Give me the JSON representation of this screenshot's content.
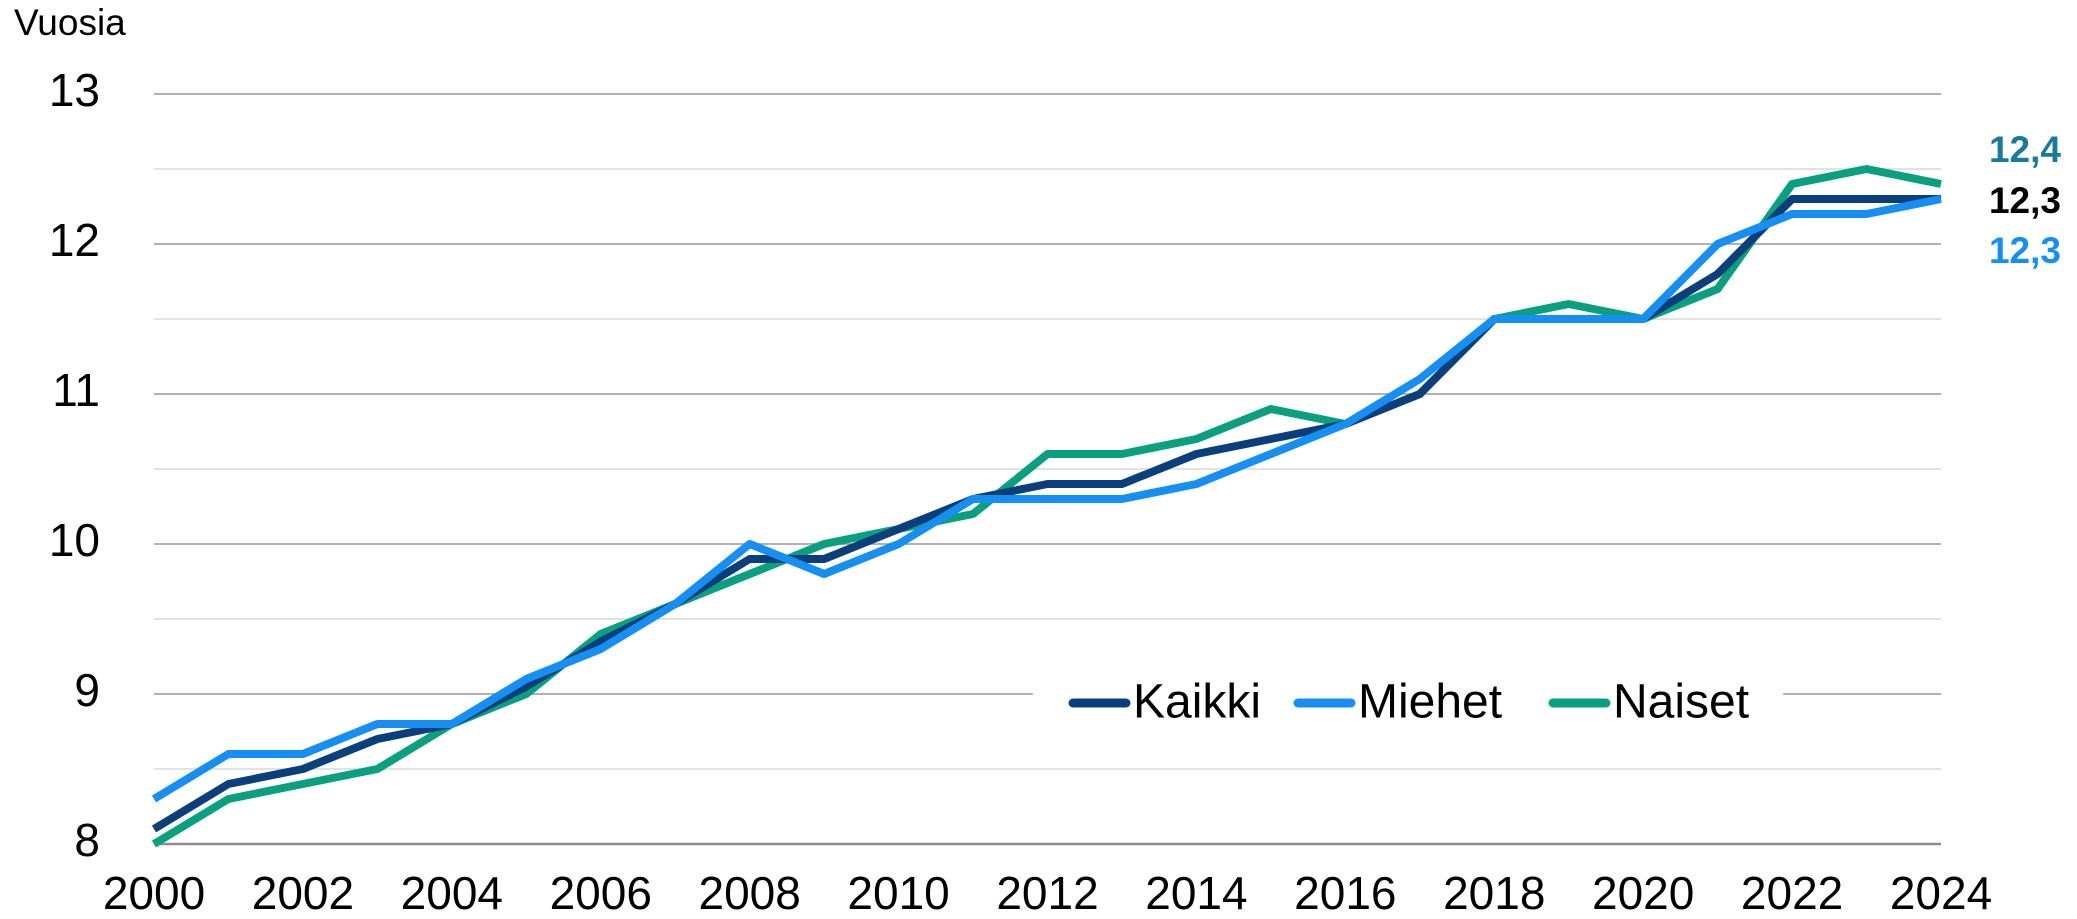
{
  "chart_data": {
    "type": "line",
    "y_axis_label": "Vuosia",
    "x": [
      2000,
      2001,
      2002,
      2003,
      2004,
      2005,
      2006,
      2007,
      2008,
      2009,
      2010,
      2011,
      2012,
      2013,
      2014,
      2015,
      2016,
      2017,
      2018,
      2019,
      2020,
      2021,
      2022,
      2023,
      2024
    ],
    "xlim": [
      2000,
      2024
    ],
    "xticks": [
      2000,
      2002,
      2004,
      2006,
      2008,
      2010,
      2012,
      2014,
      2016,
      2018,
      2020,
      2022,
      2024
    ],
    "ylim": [
      8,
      13
    ],
    "yticks": [
      8,
      9,
      10,
      11,
      12,
      13
    ],
    "minor_grid": [
      8.5,
      9.5,
      10.5,
      11.5,
      12.5
    ],
    "grid": true,
    "legend": "bottom-center",
    "series": [
      {
        "name": "Kaikki",
        "color": "#0b3f7c",
        "label_color": "#000000",
        "values": [
          8.1,
          8.4,
          8.5,
          8.7,
          8.8,
          9.05,
          9.35,
          9.6,
          9.9,
          9.9,
          10.1,
          10.3,
          10.4,
          10.4,
          10.6,
          10.7,
          10.8,
          11.0,
          11.5,
          11.5,
          11.5,
          11.8,
          12.3,
          12.3,
          12.3
        ],
        "value_labels": [
          null,
          null,
          null,
          null,
          null,
          null,
          null,
          null,
          null,
          null,
          null,
          null,
          null,
          null,
          null,
          null,
          null,
          null,
          null,
          null,
          null,
          null,
          null,
          null,
          "12,3"
        ]
      },
      {
        "name": "Miehet",
        "color": "#168ef2",
        "label_color": "#168ef2",
        "values": [
          8.3,
          8.6,
          8.6,
          8.8,
          8.8,
          9.1,
          9.3,
          9.6,
          10.0,
          9.8,
          10.0,
          10.3,
          10.3,
          10.3,
          10.4,
          10.6,
          10.8,
          11.1,
          11.5,
          11.5,
          11.5,
          12.0,
          12.2,
          12.2,
          12.3
        ],
        "value_labels": [
          null,
          null,
          null,
          null,
          null,
          null,
          null,
          null,
          null,
          null,
          null,
          null,
          null,
          null,
          null,
          null,
          null,
          null,
          null,
          null,
          null,
          null,
          null,
          null,
          "12,3"
        ]
      },
      {
        "name": "Naiset",
        "color": "#0aa07f",
        "label_color": "#1b7a98",
        "values": [
          8.0,
          8.3,
          8.4,
          8.5,
          8.8,
          9.0,
          9.4,
          9.6,
          9.8,
          10.0,
          10.1,
          10.2,
          10.6,
          10.6,
          10.7,
          10.9,
          10.8,
          11.0,
          11.5,
          11.6,
          11.5,
          11.7,
          12.4,
          12.5,
          12.4
        ],
        "value_labels": [
          null,
          null,
          null,
          null,
          null,
          null,
          null,
          null,
          null,
          null,
          null,
          null,
          null,
          null,
          null,
          null,
          null,
          null,
          null,
          null,
          null,
          null,
          null,
          null,
          "12,4"
        ]
      }
    ]
  }
}
